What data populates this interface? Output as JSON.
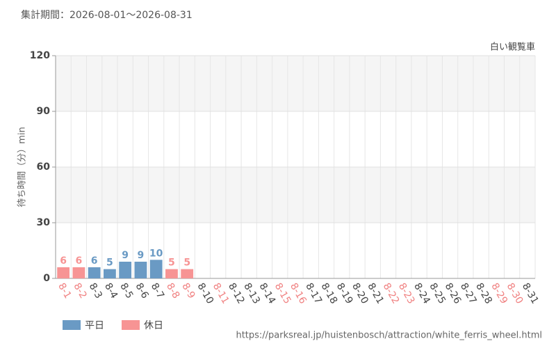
{
  "chart_data": {
    "type": "bar",
    "title": "集計期間：2026-08-01～2026-08-31",
    "subtitle": "白い観覧車",
    "y_label": "待ち時間（分）min",
    "source": "https://parksreal.jp/huistenbosch/attraction/white_ferris_wheel.html",
    "categories": [
      "8-1",
      "8-2",
      "8-3",
      "8-4",
      "8-5",
      "8-6",
      "8-7",
      "8-8",
      "8-9",
      "8-10",
      "8-11",
      "8-12",
      "8-13",
      "8-14",
      "8-15",
      "8-16",
      "8-17",
      "8-18",
      "8-19",
      "8-20",
      "8-21",
      "8-22",
      "8-23",
      "8-24",
      "8-25",
      "8-26",
      "8-27",
      "8-28",
      "8-29",
      "8-30",
      "8-31"
    ],
    "category_label_colors": [
      "#f08080",
      "#f08080",
      "#444",
      "#444",
      "#444",
      "#444",
      "#444",
      "#f08080",
      "#f08080",
      "#444",
      "#f08080",
      "#444",
      "#444",
      "#444",
      "#f08080",
      "#f08080",
      "#444",
      "#444",
      "#444",
      "#444",
      "#444",
      "#f08080",
      "#f08080",
      "#444",
      "#444",
      "#444",
      "#444",
      "#444",
      "#f08080",
      "#f08080",
      "#444"
    ],
    "series": [
      {
        "name": "平日",
        "color": "#6a9ac4",
        "values": [
          null,
          null,
          6,
          5,
          9,
          9,
          10,
          null,
          null,
          null,
          null,
          null,
          null,
          null,
          null,
          null,
          null,
          null,
          null,
          null,
          null,
          null,
          null,
          null,
          null,
          null,
          null,
          null,
          null,
          null,
          null
        ]
      },
      {
        "name": "休日",
        "color": "#f79494",
        "values": [
          6,
          6,
          null,
          null,
          null,
          null,
          null,
          5,
          5,
          null,
          null,
          null,
          null,
          null,
          null,
          null,
          null,
          null,
          null,
          null,
          null,
          null,
          null,
          null,
          null,
          null,
          null,
          null,
          null,
          null,
          null
        ]
      }
    ],
    "ylim": [
      0,
      120
    ],
    "yticks": [
      0,
      30,
      60,
      90,
      120
    ],
    "grid": true
  }
}
